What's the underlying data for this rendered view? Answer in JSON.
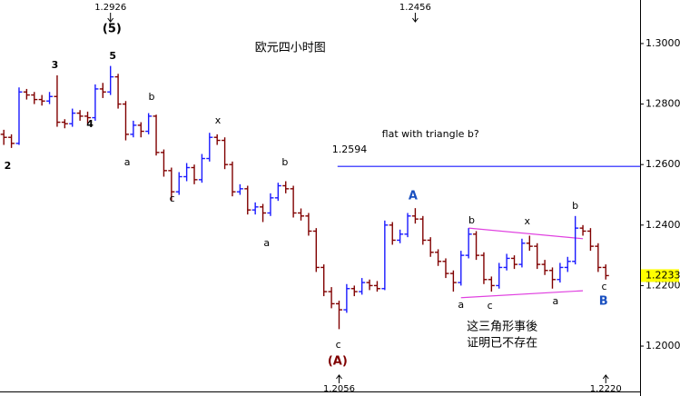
{
  "chart_data": {
    "type": "ohlc",
    "title": "欧元四小时图",
    "up_color": "#1a1aff",
    "down_color": "#800000",
    "xlim": [
      -0.5,
      83.5
    ],
    "ylim": [
      1.1835,
      1.3144
    ],
    "yticks": [
      {
        "value": 1.2,
        "label": "1.2000"
      },
      {
        "value": 1.22,
        "label": "1.2200"
      },
      {
        "value": 1.24,
        "label": "1.2400"
      },
      {
        "value": 1.26,
        "label": "1.2600"
      },
      {
        "value": 1.28,
        "label": "1.2800"
      },
      {
        "value": 1.3,
        "label": "1.3000"
      }
    ],
    "open": [
      1.27,
      1.269,
      1.267,
      1.284,
      1.283,
      1.2815,
      1.281,
      1.2825,
      1.274,
      1.2735,
      1.277,
      1.276,
      1.2755,
      1.285,
      1.284,
      1.289,
      1.28,
      1.27,
      1.273,
      1.271,
      1.276,
      1.264,
      1.258,
      1.251,
      1.256,
      1.259,
      1.255,
      1.262,
      1.269,
      1.268,
      1.26,
      1.251,
      1.252,
      1.245,
      1.246,
      1.244,
      1.249,
      1.253,
      1.252,
      1.244,
      1.243,
      1.238,
      1.226,
      1.218,
      1.214,
      1.212,
      1.219,
      1.218,
      1.221,
      1.22,
      1.219,
      1.24,
      1.235,
      1.237,
      1.243,
      1.242,
      1.235,
      1.231,
      1.228,
      1.224,
      1.221,
      1.23,
      1.237,
      1.23,
      1.222,
      1.22,
      1.226,
      1.229,
      1.227,
      1.234,
      1.233,
      1.227,
      1.225,
      1.222,
      1.226,
      1.228,
      1.239,
      1.238,
      1.233,
      1.226
    ],
    "high": [
      1.2715,
      1.27,
      1.2855,
      1.285,
      1.284,
      1.283,
      1.284,
      1.2895,
      1.275,
      1.2785,
      1.278,
      1.2775,
      1.2865,
      1.287,
      1.2926,
      1.29,
      1.281,
      1.2745,
      1.274,
      1.277,
      1.2765,
      1.265,
      1.259,
      1.2575,
      1.2605,
      1.26,
      1.2635,
      1.2705,
      1.27,
      1.269,
      1.261,
      1.2535,
      1.253,
      1.2475,
      1.247,
      1.2505,
      1.254,
      1.2545,
      1.253,
      1.2455,
      1.244,
      1.239,
      1.227,
      1.2195,
      1.215,
      1.2205,
      1.22,
      1.2225,
      1.222,
      1.2215,
      1.2415,
      1.241,
      1.2385,
      1.244,
      1.2456,
      1.243,
      1.236,
      1.232,
      1.229,
      1.225,
      1.2315,
      1.239,
      1.238,
      1.231,
      1.223,
      1.2275,
      1.2305,
      1.23,
      1.2355,
      1.2365,
      1.234,
      1.2285,
      1.226,
      1.2275,
      1.2295,
      1.243,
      1.24,
      1.239,
      1.234,
      1.227
    ],
    "low": [
      1.2665,
      1.2655,
      1.2665,
      1.2815,
      1.28,
      1.2795,
      1.28,
      1.2725,
      1.272,
      1.2725,
      1.2745,
      1.2735,
      1.2745,
      1.282,
      1.283,
      1.2785,
      1.268,
      1.269,
      1.269,
      1.27,
      1.263,
      1.256,
      1.248,
      1.25,
      1.2545,
      1.2535,
      1.254,
      1.261,
      1.2665,
      1.2585,
      1.2495,
      1.25,
      1.2435,
      1.2435,
      1.241,
      1.243,
      1.248,
      1.2505,
      1.2425,
      1.2415,
      1.2365,
      1.2245,
      1.2165,
      1.2125,
      1.2056,
      1.211,
      1.2165,
      1.217,
      1.2185,
      1.218,
      1.2185,
      1.2335,
      1.234,
      1.236,
      1.2405,
      1.2335,
      1.2295,
      1.2265,
      1.2225,
      1.218,
      1.22,
      1.229,
      1.2285,
      1.2205,
      1.218,
      1.219,
      1.225,
      1.2255,
      1.226,
      1.2315,
      1.2255,
      1.2235,
      1.219,
      1.221,
      1.2245,
      1.227,
      1.2365,
      1.2315,
      1.2245,
      1.222
    ],
    "close": [
      1.269,
      1.267,
      1.284,
      1.283,
      1.2815,
      1.281,
      1.2825,
      1.274,
      1.2735,
      1.277,
      1.276,
      1.2755,
      1.285,
      1.284,
      1.289,
      1.28,
      1.27,
      1.273,
      1.271,
      1.276,
      1.264,
      1.258,
      1.251,
      1.256,
      1.259,
      1.255,
      1.262,
      1.269,
      1.268,
      1.26,
      1.251,
      1.252,
      1.245,
      1.246,
      1.244,
      1.249,
      1.253,
      1.252,
      1.244,
      1.243,
      1.238,
      1.226,
      1.218,
      1.214,
      1.212,
      1.219,
      1.218,
      1.221,
      1.22,
      1.219,
      1.24,
      1.235,
      1.237,
      1.243,
      1.242,
      1.235,
      1.231,
      1.228,
      1.224,
      1.221,
      1.23,
      1.237,
      1.23,
      1.222,
      1.22,
      1.226,
      1.229,
      1.227,
      1.234,
      1.233,
      1.227,
      1.225,
      1.222,
      1.226,
      1.228,
      1.239,
      1.238,
      1.233,
      1.226,
      1.2233
    ],
    "last_price_color": "#ffff00",
    "price_markers": [
      {
        "index": 14,
        "value": 1.2926,
        "position": "top"
      },
      {
        "index": 54,
        "value": 1.2456,
        "position": "top"
      },
      {
        "index": 44,
        "value": 1.2056,
        "position": "bottom"
      },
      {
        "index": 79,
        "value": 1.222,
        "label": "1.2220",
        "position": "bottom"
      }
    ],
    "hline": {
      "value": 1.2594,
      "label": "1.2594",
      "start": 43.8,
      "color": "#1a1aff"
    },
    "trendline_color": "#e040e0",
    "trendlines": [
      {
        "x": [
          61,
          76
        ],
        "y": [
          1.239,
          1.2355
        ]
      },
      {
        "x": [
          60,
          76
        ],
        "y": [
          1.216,
          1.2183
        ]
      }
    ],
    "annotations": [
      {
        "text": "欧元四小时图",
        "x": 37.6,
        "y": 1.2985,
        "size": 13
      },
      {
        "text": "flat with triangle b?",
        "x": 56,
        "y": 1.27
      },
      {
        "text": "这三角形事後",
        "x": 65.4,
        "y": 1.2063,
        "size": 13
      },
      {
        "text": "证明已不存在",
        "x": 65.4,
        "y": 1.2009,
        "size": 13
      },
      {
        "text": "2",
        "x": 0.5,
        "y": 1.2595,
        "bold": true
      },
      {
        "text": "3",
        "x": 6.7,
        "y": 1.2928,
        "bold": true
      },
      {
        "text": "4",
        "x": 11.3,
        "y": 1.2733,
        "bold": true
      },
      {
        "text": "5",
        "x": 14.3,
        "y": 1.2958,
        "bold": true
      },
      {
        "text": "(5)",
        "x": 14.2,
        "y": 1.3048,
        "bold": true,
        "size": 13
      },
      {
        "text": "a",
        "x": 16.2,
        "y": 1.2607
      },
      {
        "text": "b",
        "x": 19.4,
        "y": 1.2823
      },
      {
        "text": "c",
        "x": 22.1,
        "y": 1.2486
      },
      {
        "text": "x",
        "x": 28.1,
        "y": 1.2745
      },
      {
        "text": "b",
        "x": 36.9,
        "y": 1.2607
      },
      {
        "text": "a",
        "x": 34.5,
        "y": 1.2339
      },
      {
        "text": "c",
        "x": 43.9,
        "y": 1.2003
      },
      {
        "text": "(A)",
        "x": 43.8,
        "y": 1.1949,
        "bold": true,
        "size": 13,
        "color": "#800000"
      },
      {
        "text": "A",
        "x": 53.7,
        "y": 1.2495,
        "bold": true,
        "size": 13,
        "color": "#1a50c0"
      },
      {
        "text": "a",
        "x": 60,
        "y": 1.2135
      },
      {
        "text": "b",
        "x": 61.4,
        "y": 1.2414
      },
      {
        "text": "c",
        "x": 63.8,
        "y": 1.2132
      },
      {
        "text": "x",
        "x": 68.7,
        "y": 1.2411
      },
      {
        "text": "a",
        "x": 72.4,
        "y": 1.2147
      },
      {
        "text": "b",
        "x": 75,
        "y": 1.2462
      },
      {
        "text": "c",
        "x": 78.8,
        "y": 1.2195
      },
      {
        "text": "B",
        "x": 78.7,
        "y": 1.2147,
        "bold": true,
        "size": 13,
        "color": "#1a50c0"
      }
    ]
  }
}
